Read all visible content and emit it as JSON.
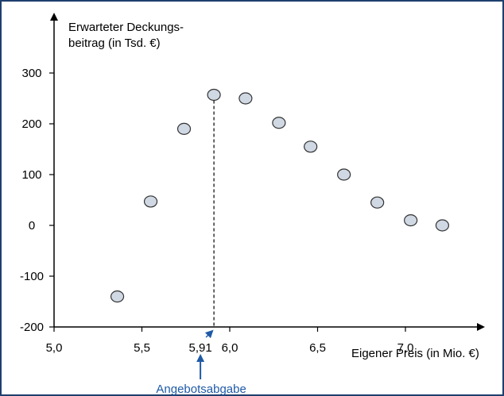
{
  "chart_data": {
    "type": "scatter",
    "ylabel_line1": "Erwarteter Deckungs-",
    "ylabel_line2": "beitrag (in Tsd. €)",
    "xlabel": "Eigener Preis (in Mio. €)",
    "xlim": [
      5.0,
      7.55
    ],
    "ylim": [
      -200,
      360
    ],
    "x_ticks": [
      {
        "value": 5.0,
        "label": "5,0"
      },
      {
        "value": 5.5,
        "label": "5,5"
      },
      {
        "value": 6.0,
        "label": "6,0"
      },
      {
        "value": 6.5,
        "label": "6,5"
      },
      {
        "value": 7.0,
        "label": "7,0"
      }
    ],
    "y_ticks": [
      {
        "value": 300,
        "label": "300"
      },
      {
        "value": 200,
        "label": "200"
      },
      {
        "value": 100,
        "label": "100"
      },
      {
        "value": 0,
        "label": "0"
      },
      {
        "value": -100,
        "label": "-100"
      },
      {
        "value": -200,
        "label": "-200"
      }
    ],
    "points": [
      {
        "x": 5.36,
        "y": -140
      },
      {
        "x": 5.55,
        "y": 47
      },
      {
        "x": 5.74,
        "y": 190
      },
      {
        "x": 5.91,
        "y": 257
      },
      {
        "x": 6.09,
        "y": 250
      },
      {
        "x": 6.28,
        "y": 202
      },
      {
        "x": 6.46,
        "y": 155
      },
      {
        "x": 6.65,
        "y": 100
      },
      {
        "x": 6.84,
        "y": 45
      },
      {
        "x": 7.03,
        "y": 10
      },
      {
        "x": 7.21,
        "y": 0
      }
    ],
    "marker_color": "#cfd8e3",
    "marker_edge": "#333333",
    "optimum": {
      "x": 5.91,
      "y": 257,
      "label": "5,91",
      "annotation": "Angebotsabgabe",
      "annotation_color": "#1f5aa6"
    }
  }
}
